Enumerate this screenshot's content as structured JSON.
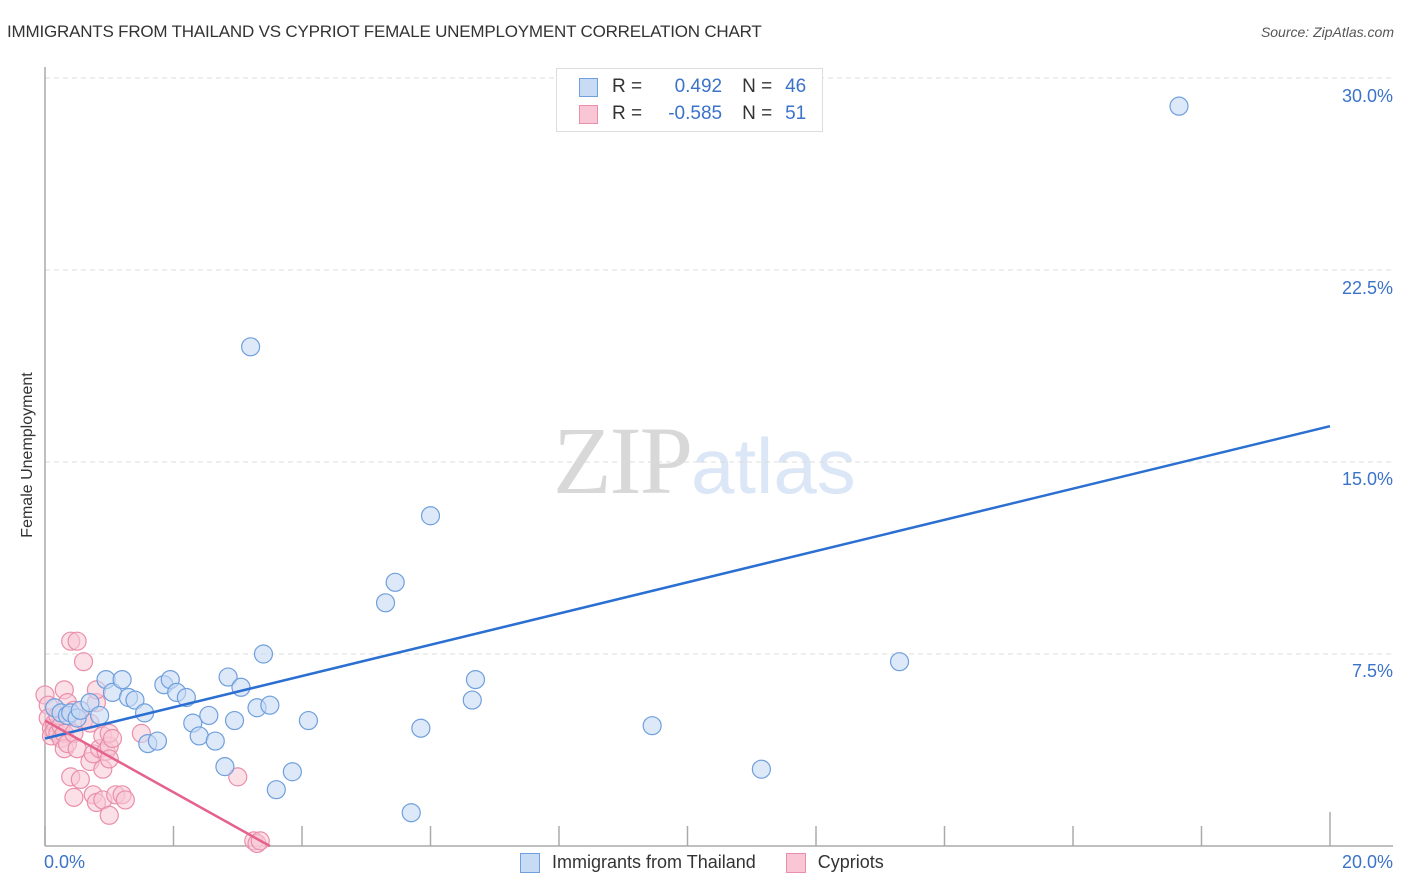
{
  "header": {
    "title": "IMMIGRANTS FROM THAILAND VS CYPRIOT FEMALE UNEMPLOYMENT CORRELATION CHART",
    "source": "Source: ZipAtlas.com"
  },
  "watermark": {
    "zip": "ZIP",
    "atlas": "atlas"
  },
  "legend": {
    "rows": [
      {
        "series": "Immigrants from Thailand",
        "r_label": "R =",
        "r_value": "0.492",
        "n_label": "N =",
        "n_value": "46",
        "color": "#a9c7ef"
      },
      {
        "series": "Cypriots",
        "r_label": "R =",
        "r_value": "-0.585",
        "n_label": "N =",
        "n_value": "51",
        "color": "#f6b9cb"
      }
    ]
  },
  "bottom_legend": [
    {
      "label": "Immigrants from Thailand",
      "color": "#a9c7ef"
    },
    {
      "label": "Cypriots",
      "color": "#f6b9cb"
    }
  ],
  "axes": {
    "ylabel": "Female Unemployment",
    "y_ticks": [
      "30.0%",
      "22.5%",
      "15.0%",
      "7.5%"
    ],
    "x_ticks": [
      "0.0%",
      "20.0%"
    ]
  },
  "colors": {
    "blue_fill": "#c7dbf5",
    "blue_stroke": "#6f9fdc",
    "blue_line": "#2a6fd1",
    "pink_fill": "#f8c6d5",
    "pink_stroke": "#ea8fab",
    "pink_line": "#e4628c",
    "tick_text": "#3b73c9"
  },
  "chart_data": {
    "type": "scatter",
    "title": "IMMIGRANTS FROM THAILAND VS CYPRIOT FEMALE UNEMPLOYMENT CORRELATION CHART",
    "xlabel": "",
    "ylabel": "Female Unemployment",
    "xlim": [
      0,
      20
    ],
    "ylim": [
      0,
      30
    ],
    "x_tick_labels": [
      "0.0%",
      "20.0%"
    ],
    "y_tick_labels": [
      "7.5%",
      "15.0%",
      "22.5%",
      "30.0%"
    ],
    "grid": "horizontal dashed",
    "legend_position": "top-center",
    "series": [
      {
        "name": "Immigrants from Thailand",
        "R": 0.492,
        "N": 46,
        "trendline": {
          "x": [
            0,
            20
          ],
          "y": [
            4.2,
            16.4
          ]
        },
        "points": [
          [
            0.15,
            5.4
          ],
          [
            0.25,
            5.2
          ],
          [
            0.35,
            5.1
          ],
          [
            0.4,
            5.2
          ],
          [
            0.5,
            5.0
          ],
          [
            0.55,
            5.3
          ],
          [
            0.7,
            5.6
          ],
          [
            0.85,
            5.1
          ],
          [
            0.95,
            6.5
          ],
          [
            1.05,
            6.0
          ],
          [
            1.2,
            6.5
          ],
          [
            1.3,
            5.8
          ],
          [
            1.4,
            5.7
          ],
          [
            1.55,
            5.2
          ],
          [
            1.6,
            4.0
          ],
          [
            1.75,
            4.1
          ],
          [
            1.85,
            6.3
          ],
          [
            1.95,
            6.5
          ],
          [
            2.05,
            6.0
          ],
          [
            2.2,
            5.8
          ],
          [
            2.3,
            4.8
          ],
          [
            2.4,
            4.3
          ],
          [
            2.55,
            5.1
          ],
          [
            2.65,
            4.1
          ],
          [
            2.8,
            3.1
          ],
          [
            2.85,
            6.6
          ],
          [
            2.95,
            4.9
          ],
          [
            3.05,
            6.2
          ],
          [
            3.2,
            19.5
          ],
          [
            3.3,
            5.4
          ],
          [
            3.4,
            7.5
          ],
          [
            3.5,
            5.5
          ],
          [
            3.6,
            2.2
          ],
          [
            3.85,
            2.9
          ],
          [
            4.1,
            4.9
          ],
          [
            5.3,
            9.5
          ],
          [
            5.45,
            10.3
          ],
          [
            5.7,
            1.3
          ],
          [
            5.85,
            4.6
          ],
          [
            6.0,
            12.9
          ],
          [
            6.65,
            5.7
          ],
          [
            6.7,
            6.5
          ],
          [
            9.45,
            4.7
          ],
          [
            11.15,
            3.0
          ],
          [
            13.3,
            7.2
          ],
          [
            17.65,
            28.9
          ]
        ]
      },
      {
        "name": "Cypriots",
        "R": -0.585,
        "N": 51,
        "trendline": {
          "x": [
            0,
            3.5
          ],
          "y": [
            4.9,
            0
          ]
        },
        "points": [
          [
            0.0,
            5.9
          ],
          [
            0.05,
            5.5
          ],
          [
            0.05,
            5.0
          ],
          [
            0.1,
            4.6
          ],
          [
            0.1,
            4.3
          ],
          [
            0.15,
            4.8
          ],
          [
            0.15,
            4.5
          ],
          [
            0.2,
            4.4
          ],
          [
            0.2,
            5.1
          ],
          [
            0.25,
            4.2
          ],
          [
            0.25,
            4.7
          ],
          [
            0.3,
            4.4
          ],
          [
            0.3,
            3.8
          ],
          [
            0.3,
            6.1
          ],
          [
            0.35,
            5.6
          ],
          [
            0.35,
            4.0
          ],
          [
            0.4,
            2.7
          ],
          [
            0.4,
            8.0
          ],
          [
            0.45,
            1.9
          ],
          [
            0.45,
            5.3
          ],
          [
            0.45,
            4.4
          ],
          [
            0.5,
            8.0
          ],
          [
            0.5,
            3.8
          ],
          [
            0.55,
            2.6
          ],
          [
            0.6,
            4.9
          ],
          [
            0.6,
            7.2
          ],
          [
            0.7,
            3.3
          ],
          [
            0.7,
            4.8
          ],
          [
            0.75,
            3.6
          ],
          [
            0.75,
            2.0
          ],
          [
            0.8,
            5.6
          ],
          [
            0.8,
            6.1
          ],
          [
            0.8,
            1.7
          ],
          [
            0.85,
            3.8
          ],
          [
            0.9,
            4.3
          ],
          [
            0.9,
            1.8
          ],
          [
            0.9,
            3.0
          ],
          [
            0.95,
            3.7
          ],
          [
            1.0,
            3.9
          ],
          [
            1.0,
            4.4
          ],
          [
            1.0,
            3.4
          ],
          [
            1.0,
            1.2
          ],
          [
            1.05,
            4.2
          ],
          [
            1.1,
            2.0
          ],
          [
            1.2,
            2.0
          ],
          [
            1.25,
            1.8
          ],
          [
            1.5,
            4.4
          ],
          [
            3.0,
            2.7
          ],
          [
            3.25,
            0.2
          ],
          [
            3.3,
            0.1
          ],
          [
            3.35,
            0.2
          ]
        ]
      }
    ]
  }
}
